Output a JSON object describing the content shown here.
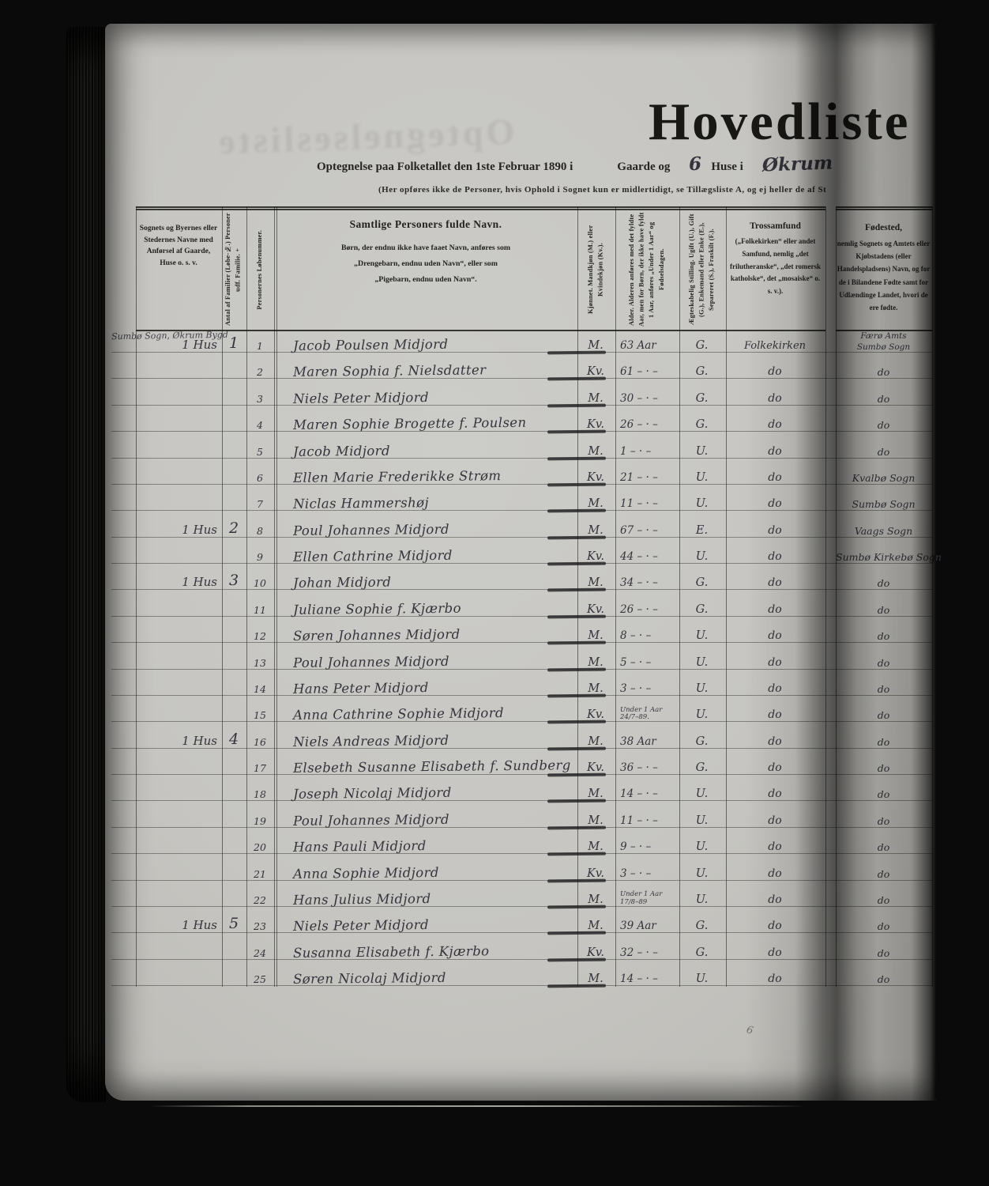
{
  "page": {
    "title": "Hovedliste",
    "subtitle_left": "Optegnelse paa Folketallet den 1ste Februar 1890 i",
    "subtitle_gaarde": "Gaarde og",
    "hw_house_count": "6",
    "subtitle_huse": "Huse i",
    "hw_place": "Økrum",
    "note": "(Her opføres ikke de Personer, hvis Ophold i Sognet kun er midlertidigt, se Tillægsliste A, og ej heller de af St",
    "bleed_text": "Optegnelsesliste",
    "stray_mark": "6"
  },
  "colors": {
    "paper": "#c6c5c1",
    "print_ink": "#1f1e1c",
    "handwriting_ink": "#35343c",
    "background": "#0a0a0a"
  },
  "table": {
    "headers": {
      "place": "Sognets og Byernes eller Stedernes Navne med Anførsel af Gaarde, Huse o. s. v.",
      "families": "Antal af Familier (Løbe-№.) Personer udf. Familie. +",
      "number": "Personernes Løbenummer.",
      "name_title": "Samtlige Personers fulde Navn.",
      "name_sub1": "Børn, der endnu ikke have faaet Navn, anføres som",
      "name_sub2": "„Drengebarn, endnu uden Navn“, eller som",
      "name_sub3": "„Pigebarn, endnu uden Navn“.",
      "sex": "Kjønnet. Mandkjøn (M.) eller Kvindekjøn (Kv.).",
      "age": "Alder. Alderen anføres med det fyldte Aar, men for Børn, der ikke have fyldt 1 Aar, anføres „Under 1 Aar“ og Fødselsdagen.",
      "status": "Ægteskabelig Stilling. Ugift (U.), Gift (G.), Enkemand eller Enke (E.), Separeret (S.), Fraskilt (F.).",
      "religion_title": "Trossamfund",
      "religion_sub": "(„Folkekirken“ eller andet Samfund, nemlig „det frilutheranske“, „det romersk katholske“, det „mosaiske“ o. s. v.).",
      "birthplace_title": "Fødested,",
      "birthplace_sub": "nemlig Sognets og Amtets eller Kjøbstadens (eller Handelspladsens) Navn, og for de i Bilandene Fødte samt for Udlændinge Landet, hvori de ere fødte."
    },
    "place_annotation": "Sumbø Sogn, Økrum Bygd",
    "rows": [
      {
        "nr": "1",
        "house": "1 Hus",
        "fam": "1",
        "name": "Jacob Poulsen Midjord",
        "sex": "M.",
        "age": "63 Aar",
        "status": "G.",
        "religion": "Folkekirken",
        "birth": "Færø Amts",
        "birth2": "Sumbø Sogn"
      },
      {
        "nr": "2",
        "name": "Maren Sophia f. Nielsdatter",
        "sex": "Kv.",
        "age": "61 – · –",
        "status": "G.",
        "religion": "do",
        "birth": "do"
      },
      {
        "nr": "3",
        "name": "Niels Peter Midjord",
        "sex": "M.",
        "age": "30 – · –",
        "status": "G.",
        "religion": "do",
        "birth": "do"
      },
      {
        "nr": "4",
        "name": "Maren Sophie Brogette f. Poulsen",
        "sex": "Kv.",
        "age": "26 – · –",
        "status": "G.",
        "religion": "do",
        "birth": "do"
      },
      {
        "nr": "5",
        "name": "Jacob Midjord",
        "sex": "M.",
        "age": "1 – · –",
        "status": "U.",
        "religion": "do",
        "birth": "do"
      },
      {
        "nr": "6",
        "name": "Ellen Marie Frederikke Strøm",
        "sex": "Kv.",
        "age": "21 – · –",
        "status": "U.",
        "religion": "do",
        "birth": "Kvalbø Sogn"
      },
      {
        "nr": "7",
        "name": "Niclas Hammershøj",
        "sex": "M.",
        "age": "11 – · –",
        "status": "U.",
        "religion": "do",
        "birth": "Sumbø Sogn"
      },
      {
        "nr": "8",
        "house": "1 Hus",
        "fam": "2",
        "name": "Poul Johannes Midjord",
        "sex": "M.",
        "age": "67 – · –",
        "status": "E.",
        "religion": "do",
        "birth": "Vaags Sogn"
      },
      {
        "nr": "9",
        "name": "Ellen Cathrine Midjord",
        "sex": "Kv.",
        "age": "44 – · –",
        "status": "U.",
        "religion": "do",
        "birth": "Sumbø Kirkebø Sogn"
      },
      {
        "nr": "10",
        "house": "1 Hus",
        "fam": "3",
        "name": "Johan Midjord",
        "sex": "M.",
        "age": "34 – · –",
        "status": "G.",
        "religion": "do",
        "birth": "do"
      },
      {
        "nr": "11",
        "name": "Juliane Sophie f. Kjærbo",
        "sex": "Kv.",
        "age": "26 – · –",
        "status": "G.",
        "religion": "do",
        "birth": "do"
      },
      {
        "nr": "12",
        "name": "Søren Johannes Midjord",
        "sex": "M.",
        "age": "8 – · –",
        "status": "U.",
        "religion": "do",
        "birth": "do"
      },
      {
        "nr": "13",
        "name": "Poul Johannes Midjord",
        "sex": "M.",
        "age": "5 – · –",
        "status": "U.",
        "religion": "do",
        "birth": "do"
      },
      {
        "nr": "14",
        "name": "Hans Peter Midjord",
        "sex": "M.",
        "age": "3 – · –",
        "status": "U.",
        "religion": "do",
        "birth": "do"
      },
      {
        "nr": "15",
        "name": "Anna Cathrine Sophie Midjord",
        "sex": "Kv.",
        "age": "Under 1 Aar",
        "age2": "24/7–89.",
        "status": "U.",
        "religion": "do",
        "birth": "do"
      },
      {
        "nr": "16",
        "house": "1 Hus",
        "fam": "4",
        "name": "Niels Andreas Midjord",
        "sex": "M.",
        "age": "38 Aar",
        "status": "G.",
        "religion": "do",
        "birth": "do"
      },
      {
        "nr": "17",
        "name": "Elsebeth Susanne Elisabeth f. Sundberg",
        "sex": "Kv.",
        "age": "36 – · –",
        "status": "G.",
        "religion": "do",
        "birth": "do"
      },
      {
        "nr": "18",
        "name": "Joseph Nicolaj Midjord",
        "sex": "M.",
        "age": "14 – · –",
        "status": "U.",
        "religion": "do",
        "birth": "do"
      },
      {
        "nr": "19",
        "name": "Poul Johannes Midjord",
        "sex": "M.",
        "age": "11 – · –",
        "status": "U.",
        "religion": "do",
        "birth": "do"
      },
      {
        "nr": "20",
        "name": "Hans Pauli Midjord",
        "sex": "M.",
        "age": "9 – · –",
        "status": "U.",
        "religion": "do",
        "birth": "do"
      },
      {
        "nr": "21",
        "name": "Anna Sophie Midjord",
        "sex": "Kv.",
        "age": "3 – · –",
        "status": "U.",
        "religion": "do",
        "birth": "do"
      },
      {
        "nr": "22",
        "name": "Hans Julius Midjord",
        "sex": "M.",
        "age": "Under 1 Aar",
        "age2": "17/8–89",
        "status": "U.",
        "religion": "do",
        "birth": "do"
      },
      {
        "nr": "23",
        "house": "1 Hus",
        "fam": "5",
        "name": "Niels Peter Midjord",
        "sex": "M.",
        "age": "39 Aar",
        "status": "G.",
        "religion": "do",
        "birth": "do"
      },
      {
        "nr": "24",
        "name": "Susanna Elisabeth f. Kjærbo",
        "sex": "Kv.",
        "age": "32 – · –",
        "status": "G.",
        "religion": "do",
        "birth": "do"
      },
      {
        "nr": "25",
        "name": "Søren Nicolaj Midjord",
        "sex": "M.",
        "age": "14 – · –",
        "status": "U.",
        "religion": "do",
        "birth": "do"
      }
    ]
  }
}
